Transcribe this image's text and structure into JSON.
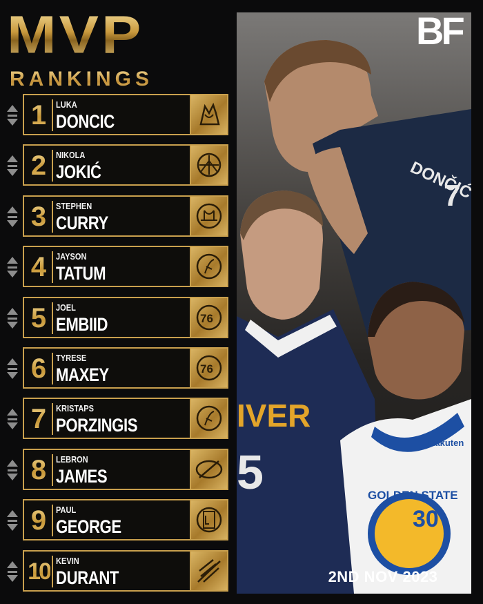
{
  "title": {
    "main": "MVP",
    "sub": "RANKINGS"
  },
  "brand": "BF",
  "date": "2ND NOV 2023",
  "players": [
    {
      "rank": "1",
      "first": "LUKA",
      "last": "DONCIC",
      "team_icon": "mavericks-logo-icon"
    },
    {
      "rank": "2",
      "first": "NIKOLA",
      "last": "JOKIĆ",
      "team_icon": "nuggets-logo-icon"
    },
    {
      "rank": "3",
      "first": "STEPHEN",
      "last": "CURRY",
      "team_icon": "warriors-logo-icon"
    },
    {
      "rank": "4",
      "first": "JAYSON",
      "last": "TATUM",
      "team_icon": "celtics-logo-icon"
    },
    {
      "rank": "5",
      "first": "JOEL",
      "last": "EMBIID",
      "team_icon": "76ers-logo-icon"
    },
    {
      "rank": "6",
      "first": "TYRESE",
      "last": "MAXEY",
      "team_icon": "76ers-logo-icon"
    },
    {
      "rank": "7",
      "first": "KRISTAPS",
      "last": "PORZINGIS",
      "team_icon": "celtics-logo-icon"
    },
    {
      "rank": "8",
      "first": "LEBRON",
      "last": "JAMES",
      "team_icon": "lakers-logo-icon"
    },
    {
      "rank": "9",
      "first": "PAUL",
      "last": "GEORGE",
      "team_icon": "clippers-logo-icon"
    },
    {
      "rank": "10",
      "first": "KEVIN",
      "last": "DURANT",
      "team_icon": "suns-logo-icon"
    }
  ],
  "photo": {
    "jersey_text_1": "DONČIĆ",
    "jersey_text_2": "7",
    "jersey_text_3": "IVER",
    "jersey_text_4": "5",
    "jersey_text_5": "GOLDEN STATE",
    "jersey_text_6": "30",
    "jersey_text_7": "Rakuten"
  },
  "colors": {
    "gold": "#c9a04e",
    "background": "#0b0b0c",
    "text": "#ffffff"
  }
}
